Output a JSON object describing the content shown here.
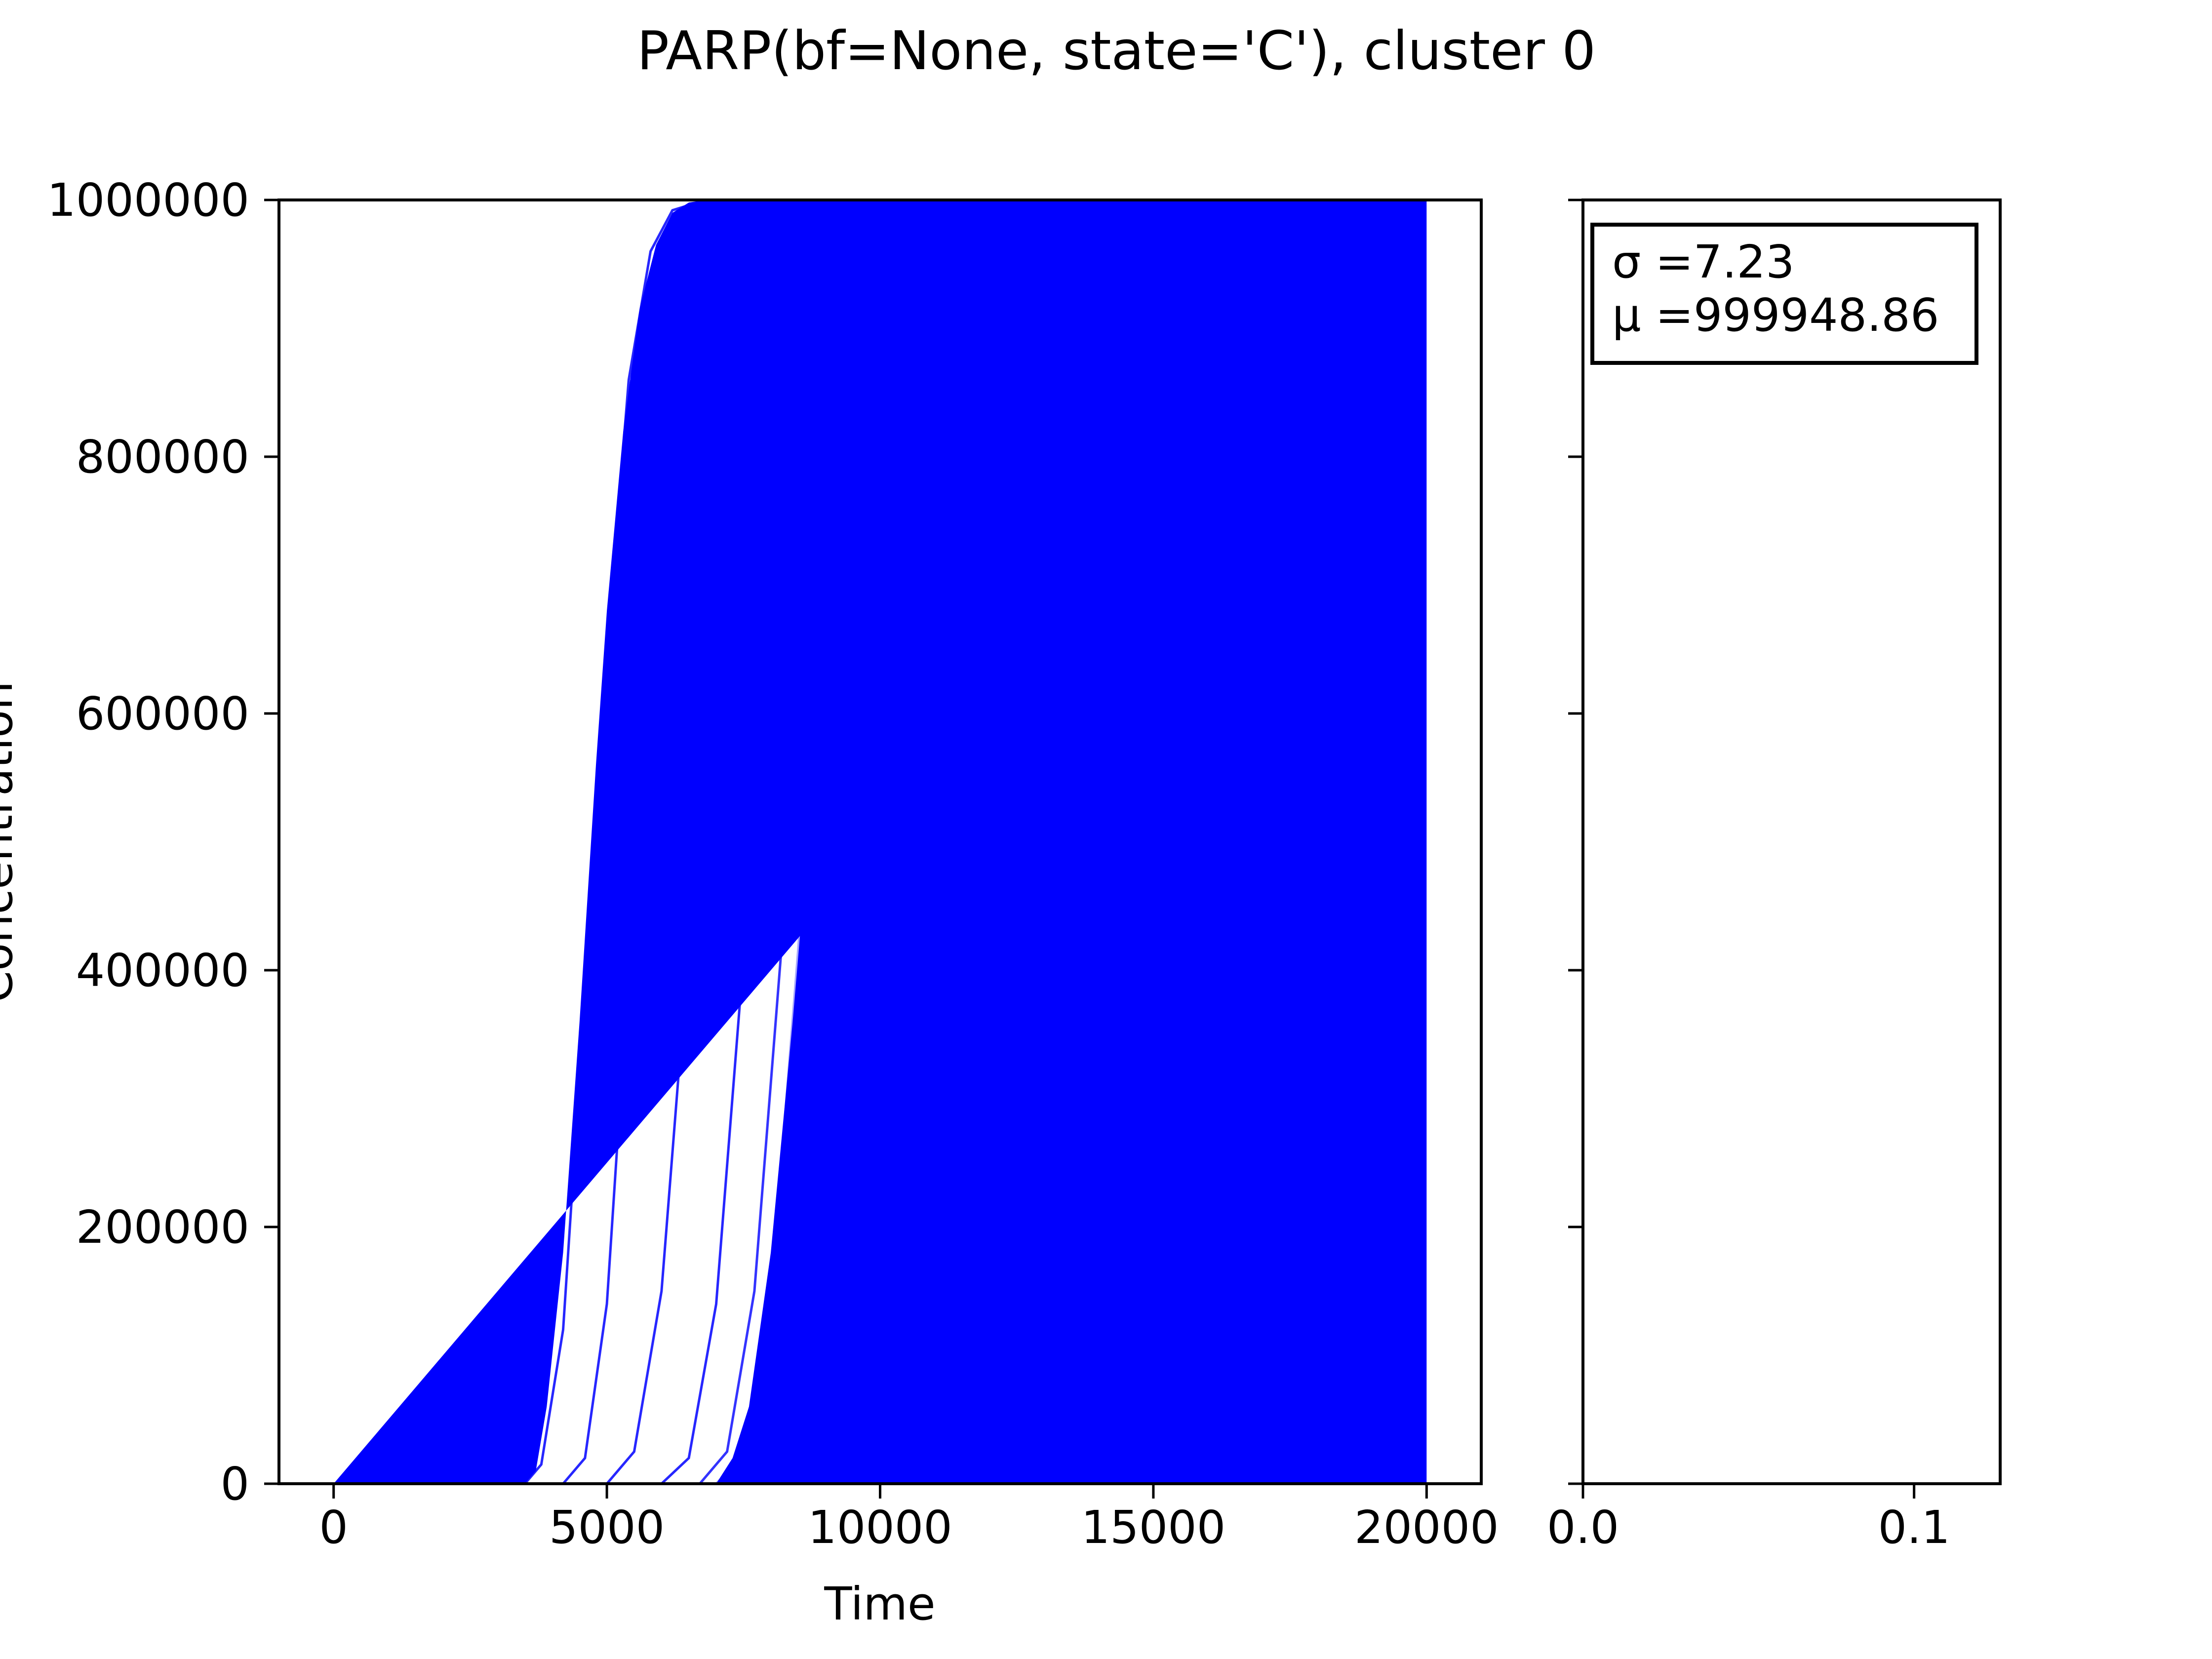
{
  "chart_data": [
    {
      "type": "line",
      "title": "PARP(bf=None, state='C'), cluster 0",
      "xlabel": "Time",
      "ylabel": "Concentration",
      "xlim": [
        -1000,
        21000
      ],
      "ylim": [
        0,
        1000000
      ],
      "xticks": [
        0,
        5000,
        10000,
        15000,
        20000
      ],
      "xtick_labels": [
        "0",
        "5000",
        "10000",
        "15000",
        "20000"
      ],
      "yticks": [
        0,
        200000,
        400000,
        600000,
        800000,
        1000000
      ],
      "ytick_labels": [
        "0",
        "200000",
        "400000",
        "600000",
        "800000",
        "1000000"
      ],
      "grid": false,
      "legend": null,
      "series": [
        {
          "x": [
            0,
            3500,
            3800,
            4200,
            4600,
            5000,
            5400,
            5800,
            6200,
            6800,
            20000
          ],
          "values": [
            0,
            0,
            15000,
            120000,
            380000,
            650000,
            860000,
            960000,
            992000,
            999900,
            1000000
          ],
          "color": "#0000ff",
          "opacity": 0.85
        },
        {
          "x": [
            0,
            4200,
            4600,
            5000,
            5400,
            5800,
            6200,
            6600,
            7000,
            7500,
            20000
          ],
          "values": [
            0,
            0,
            20000,
            140000,
            400000,
            680000,
            880000,
            965000,
            993000,
            999900,
            1000000
          ],
          "color": "#0000ff",
          "opacity": 0.85
        },
        {
          "x": [
            0,
            5000,
            5500,
            6000,
            6500,
            7000,
            7500,
            8000,
            8500,
            9000,
            20000
          ],
          "values": [
            0,
            0,
            25000,
            150000,
            420000,
            700000,
            890000,
            970000,
            994000,
            999900,
            1000000
          ],
          "color": "#0000ff",
          "opacity": 0.85
        },
        {
          "x": [
            0,
            6000,
            6500,
            7000,
            7500,
            8000,
            8500,
            9000,
            9500,
            10000,
            20000
          ],
          "values": [
            0,
            0,
            20000,
            140000,
            410000,
            690000,
            885000,
            968000,
            993000,
            999900,
            1000000
          ],
          "color": "#0000ff",
          "opacity": 0.85
        },
        {
          "x": [
            0,
            6700,
            7200,
            7700,
            8200,
            8700,
            9200,
            9700,
            10200,
            10800,
            20000
          ],
          "values": [
            0,
            0,
            25000,
            150000,
            420000,
            700000,
            890000,
            970000,
            994000,
            999900,
            1000000
          ],
          "color": "#0000ff",
          "opacity": 0.8
        },
        {
          "x": [
            0,
            7000,
            7500,
            8000,
            8500,
            9000,
            9500,
            10000,
            10500,
            11000,
            20000
          ],
          "values": [
            0,
            0,
            22000,
            145000,
            415000,
            695000,
            888000,
            969000,
            993500,
            999900,
            1000000
          ],
          "color": "#0000ff",
          "opacity": 0.35
        },
        {
          "x": [
            0,
            7500,
            8000,
            8500,
            9000,
            9500,
            10000,
            10500,
            11000,
            11700,
            20000
          ],
          "values": [
            0,
            0,
            20000,
            120000,
            380000,
            660000,
            870000,
            960000,
            992000,
            999900,
            1000000
          ],
          "color": "#0000ff",
          "opacity": 0.2
        },
        {
          "x": [
            0,
            7800,
            8300,
            8800,
            9300,
            9800,
            10300,
            10800,
            11300,
            12000,
            20000
          ],
          "values": [
            0,
            0,
            18000,
            110000,
            360000,
            640000,
            860000,
            955000,
            991000,
            999900,
            1000000
          ],
          "color": "#0000ff",
          "opacity": 0.18
        }
      ],
      "band": {
        "color": "#0000ff",
        "left_edge": {
          "x": [
            0,
            3500,
            3700,
            3900,
            4200,
            4500,
            4800,
            5000,
            5300,
            5600,
            5900,
            6200,
            6500,
            6800,
            20000
          ],
          "values": [
            0,
            0,
            10000,
            60000,
            180000,
            360000,
            560000,
            680000,
            820000,
            915000,
            965000,
            990000,
            998000,
            999900,
            1000000
          ]
        },
        "right_edge": {
          "x": [
            20000,
            7000,
            7300,
            7600,
            8000,
            8400,
            8800,
            9100,
            9400,
            9700,
            10000,
            10300,
            10700,
            20000
          ],
          "values": [
            0,
            0,
            20000,
            60000,
            180000,
            360000,
            560000,
            700000,
            820000,
            910000,
            960000,
            988000,
            999000,
            1000000
          ]
        }
      }
    },
    {
      "type": "histogram",
      "xlim": [
        0,
        0.126
      ],
      "ylim": [
        0,
        1000000
      ],
      "xticks": [
        0.0,
        0.1
      ],
      "xtick_labels": [
        "0.0",
        "0.1"
      ],
      "yticks": [
        0,
        200000,
        400000,
        600000,
        800000,
        1000000
      ],
      "show_ytick_labels": false,
      "annotation": {
        "sigma_label": "σ =7.23",
        "mu_label": "μ =999948.86"
      },
      "bins": []
    }
  ]
}
